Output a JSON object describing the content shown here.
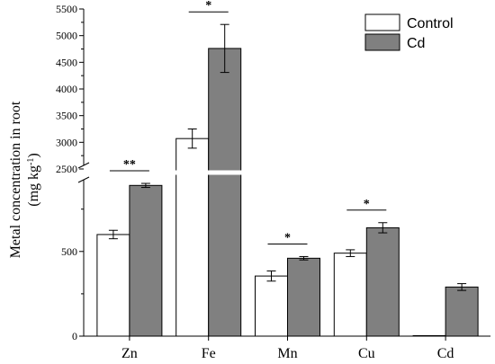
{
  "chart_data": {
    "type": "bar",
    "title": "",
    "xlabel": "",
    "ylabel": "Metal concentration in root",
    "ylabel_unit_main": "(mg kg",
    "ylabel_unit_sup": "-1",
    "ylabel_unit_close": ")",
    "categories": [
      "Zn",
      "Fe",
      "Mn",
      "Cu",
      "Cd"
    ],
    "series": [
      {
        "name": "Control",
        "color": "#ffffff",
        "values": [
          600,
          3070,
          355,
          490,
          3
        ],
        "errors": [
          25,
          180,
          30,
          20,
          0
        ]
      },
      {
        "name": "Cd",
        "color": "#808080",
        "values": [
          890,
          4760,
          460,
          640,
          290
        ],
        "errors": [
          12,
          450,
          10,
          30,
          20
        ]
      }
    ],
    "significance": [
      {
        "category": "Zn",
        "label": "**"
      },
      {
        "category": "Fe",
        "label": "*"
      },
      {
        "category": "Mn",
        "label": "*"
      },
      {
        "category": "Cu",
        "label": "*"
      }
    ],
    "y_axis": {
      "broken": true,
      "lower_range": [
        0,
        950
      ],
      "lower_ticks": [
        "0",
        "500"
      ],
      "upper_range": [
        2500,
        5500
      ],
      "upper_ticks": [
        "2500",
        "3000",
        "3500",
        "4000",
        "4500",
        "5000",
        "5500"
      ]
    },
    "legend_position": "top-right",
    "grid": false
  }
}
